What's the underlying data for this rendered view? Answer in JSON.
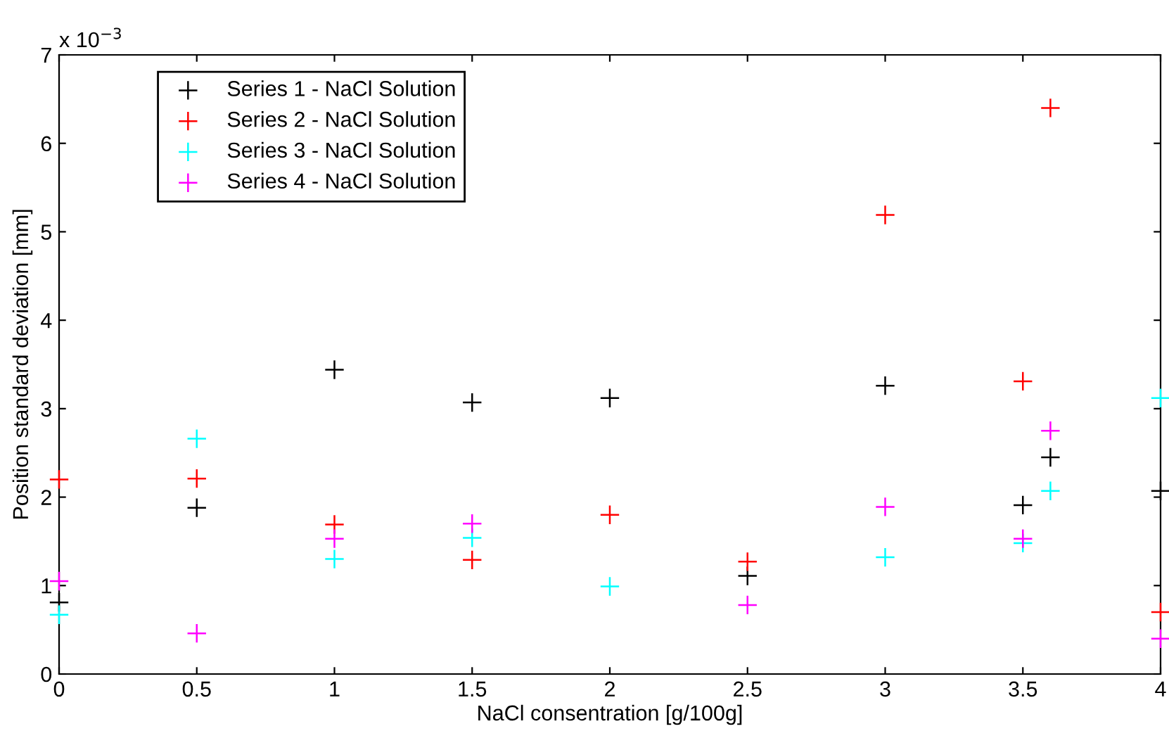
{
  "chart_data": {
    "type": "scatter",
    "xlabel": "NaCl consentration [g/100g]",
    "ylabel": "Position standard deviation [mm]",
    "x": [
      0,
      0.5,
      1,
      1.5,
      2,
      2.5,
      3,
      3.5,
      3.6,
      4
    ],
    "series": [
      {
        "name": "Series 1 - NaCl Solution",
        "color": "#000000",
        "values": [
          0.81,
          1.88,
          3.44,
          3.07,
          3.12,
          1.11,
          3.26,
          1.91,
          2.45,
          2.07
        ]
      },
      {
        "name": "Series 2 - NaCl Solution",
        "color": "#ff0000",
        "values": [
          2.2,
          2.21,
          1.69,
          1.29,
          1.8,
          1.27,
          5.19,
          3.31,
          6.4,
          0.7
        ]
      },
      {
        "name": "Series 3 - NaCl Solution",
        "color": "#00ffff",
        "values": [
          0.67,
          2.66,
          1.3,
          1.54,
          0.99,
          null,
          1.32,
          1.48,
          2.07,
          3.12
        ]
      },
      {
        "name": "Series 4 - NaCl Solution",
        "color": "#ff00ff",
        "values": [
          1.05,
          0.46,
          1.53,
          1.7,
          null,
          0.78,
          1.89,
          1.53,
          2.75,
          0.4
        ]
      }
    ],
    "xlim": [
      0,
      4
    ],
    "ylim": [
      0,
      7
    ],
    "xticks": [
      0,
      0.5,
      1,
      1.5,
      2,
      2.5,
      3,
      3.5,
      4
    ],
    "yticks": [
      0,
      1,
      2,
      3,
      4,
      5,
      6,
      7
    ],
    "annotations": [
      "x 10$^{−3}$"
    ],
    "marker": "cross",
    "legend": "top left",
    "grid": false
  }
}
